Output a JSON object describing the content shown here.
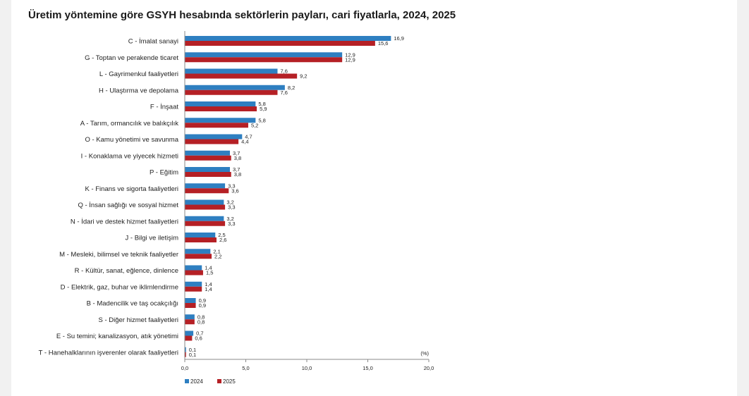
{
  "chart_data": {
    "type": "bar",
    "orientation": "horizontal",
    "title": "Üretim yöntemine göre GSYH hesabında sektörlerin payları, cari fiyatlarla, 2024, 2025",
    "unit_label": "(%)",
    "categories": [
      "C - İmalat sanayi",
      "G - Toptan ve perakende ticaret",
      "L - Gayrimenkul faaliyetleri",
      "H - Ulaştırma ve depolama",
      "F - İnşaat",
      "A - Tarım, ormancılık ve balıkçılık",
      "O - Kamu yönetimi ve savunma",
      "I - Konaklama ve yiyecek hizmeti",
      "P - Eğitim",
      "K - Finans ve sigorta faaliyetleri",
      "Q - İnsan sağlığı ve sosyal hizmet",
      "N - İdari ve destek hizmet faaliyetleri",
      "J - Bilgi ve iletişim",
      "M - Mesleki, bilimsel ve teknik faaliyetler",
      "R - Kültür, sanat, eğlence, dinlence",
      "D - Elektrik, gaz, buhar ve iklimlendirme",
      "B - Madencilik ve taş ocakçılığı",
      "S - Diğer hizmet faaliyetleri",
      "E - Su temini; kanalizasyon, atık yönetimi",
      "T - Hanehalklarının işverenler olarak faaliyetleri"
    ],
    "series": [
      {
        "name": "2024",
        "color": "#2e7fc1",
        "values": [
          16.9,
          12.9,
          7.6,
          8.2,
          5.8,
          5.8,
          4.7,
          3.7,
          3.7,
          3.3,
          3.2,
          3.2,
          2.5,
          2.1,
          1.4,
          1.4,
          0.9,
          0.8,
          0.7,
          0.1
        ],
        "labels": [
          "16,9",
          "12,9",
          "7,6",
          "8,2",
          "5,8",
          "5,8",
          "4,7",
          "3,7",
          "3,7",
          "3,3",
          "3,2",
          "3,2",
          "2,5",
          "2,1",
          "1,4",
          "1,4",
          "0,9",
          "0,8",
          "0,7",
          "0,1"
        ]
      },
      {
        "name": "2025",
        "color": "#b52025",
        "values": [
          15.6,
          12.9,
          9.2,
          7.6,
          5.9,
          5.2,
          4.4,
          3.8,
          3.8,
          3.6,
          3.3,
          3.3,
          2.6,
          2.2,
          1.5,
          1.4,
          0.9,
          0.8,
          0.6,
          0.1
        ],
        "labels": [
          "15,6",
          "12,9",
          "9,2",
          "7,6",
          "5,9",
          "5,2",
          "4,4",
          "3,8",
          "3,8",
          "3,6",
          "3,3",
          "3,3",
          "2,6",
          "2,2",
          "1,5",
          "1,4",
          "0,9",
          "0,8",
          "0,6",
          "0,1"
        ]
      }
    ],
    "xlim": [
      0,
      20
    ],
    "xticks": [
      0,
      5,
      10,
      15,
      20
    ],
    "xtick_labels": [
      "0,0",
      "5,0",
      "10,0",
      "15,0",
      "20,0"
    ],
    "grid": false,
    "legend_position": "bottom-left"
  }
}
